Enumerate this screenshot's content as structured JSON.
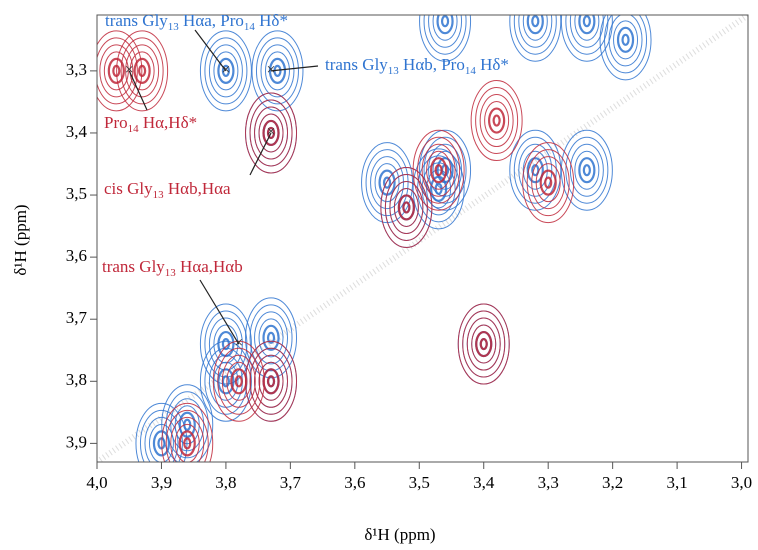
{
  "chart_data": {
    "type": "contour",
    "x_label": "δ¹H (ppm)",
    "y_label": "δ¹H (ppm)",
    "xlim": [
      4.0,
      2.99
    ],
    "ylim": [
      3.21,
      3.93
    ],
    "xticks": [
      {
        "value": 4.0,
        "label": "4,0"
      },
      {
        "value": 3.9,
        "label": "3,9"
      },
      {
        "value": 3.8,
        "label": "3,8"
      },
      {
        "value": 3.7,
        "label": "3,7"
      },
      {
        "value": 3.6,
        "label": "3,6"
      },
      {
        "value": 3.5,
        "label": "3,5"
      },
      {
        "value": 3.4,
        "label": "3,4"
      },
      {
        "value": 3.3,
        "label": "3,3"
      },
      {
        "value": 3.2,
        "label": "3,2"
      },
      {
        "value": 3.1,
        "label": "3,1"
      },
      {
        "value": 3.0,
        "label": "3,0"
      }
    ],
    "yticks": [
      {
        "value": 3.3,
        "label": "3,3"
      },
      {
        "value": 3.4,
        "label": "3,4"
      },
      {
        "value": 3.5,
        "label": "3,5"
      },
      {
        "value": 3.6,
        "label": "3,6"
      },
      {
        "value": 3.7,
        "label": "3,7"
      },
      {
        "value": 3.8,
        "label": "3,8"
      },
      {
        "value": 3.9,
        "label": "3,9"
      }
    ],
    "series": [
      {
        "color": "#2f74d0",
        "x": [
          3.9,
          3.86,
          3.8,
          3.73,
          3.8,
          3.73,
          3.52,
          3.46,
          3.4,
          3.32,
          3.24,
          3.46,
          3.32,
          3.24,
          3.72,
          3.8,
          3.73,
          3.18,
          3.55,
          3.47
        ],
        "y": [
          3.9,
          3.87,
          3.8,
          3.73,
          3.74,
          3.8,
          3.52,
          3.46,
          3.74,
          3.46,
          3.46,
          3.22,
          3.22,
          3.22,
          3.3,
          3.3,
          3.4,
          3.25,
          3.48,
          3.49
        ]
      },
      {
        "color": "#c0283a",
        "x": [
          3.97,
          3.93,
          3.73,
          3.78,
          3.73,
          3.4,
          3.52,
          3.47,
          3.3,
          3.38,
          3.86
        ],
        "y": [
          3.3,
          3.3,
          3.4,
          3.8,
          3.8,
          3.74,
          3.52,
          3.46,
          3.48,
          3.38,
          3.9
        ]
      }
    ],
    "annotations": [
      {
        "parts": [
          "trans Gly",
          "13",
          " Hαa, Pro",
          "14",
          " Hδ*"
        ],
        "color": "#2f74d0",
        "x": 3.8,
        "y": 3.3
      },
      {
        "parts": [
          "trans Gly",
          "13",
          " Hαb, Pro",
          "14",
          " Hδ*"
        ],
        "color": "#2f74d0",
        "x": 3.73,
        "y": 3.3
      },
      {
        "parts": [
          "Pro",
          "14",
          " Hα,Hδ*"
        ],
        "color": "#c0283a",
        "x": 3.95,
        "y": 3.3
      },
      {
        "parts": [
          "cis Gly",
          "13",
          " Hαb,Hαa"
        ],
        "color": "#c0283a",
        "x": 3.73,
        "y": 3.4
      },
      {
        "parts": [
          "trans Gly",
          "13",
          " Hαa,Hαb"
        ],
        "color": "#c0283a",
        "x": 3.78,
        "y": 3.74
      }
    ]
  }
}
